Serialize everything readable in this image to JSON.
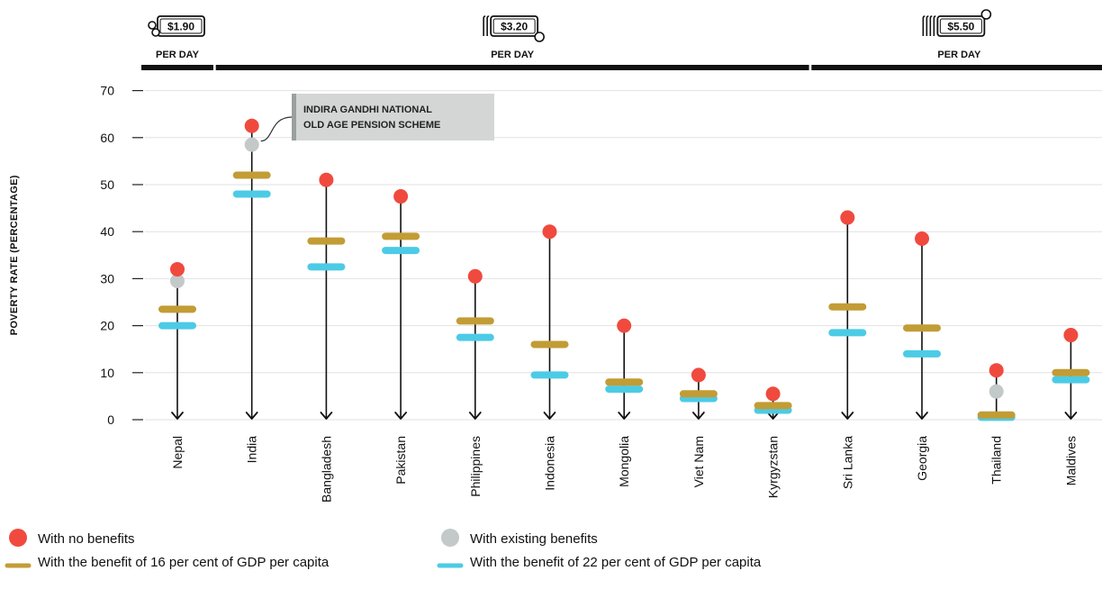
{
  "chart_data": {
    "type": "dot-range",
    "ylabel": "POVERTY RATE (PERCENTAGE)",
    "ylim": [
      0,
      70
    ],
    "yticks": [
      0,
      10,
      20,
      30,
      40,
      50,
      60,
      70
    ],
    "categories": [
      "Nepal",
      "India",
      "Bangladesh",
      "Pakistan",
      "Philippines",
      "Indonesia",
      "Mongolia",
      "Viet Nam",
      "Kyrgyzstan",
      "Sri Lanka",
      "Georgia",
      "Thailand",
      "Maldives"
    ],
    "series": [
      {
        "key": "no_benefits",
        "name": "With no benefits",
        "marker": "dot",
        "color": "#f04a3e",
        "values": [
          32,
          62.5,
          51,
          47.5,
          30.5,
          40,
          20,
          9.5,
          5.5,
          43,
          38.5,
          10.5,
          18
        ]
      },
      {
        "key": "existing_benefits",
        "name": "With existing benefits",
        "marker": "dot",
        "color": "#c3c8c8",
        "values": [
          29.5,
          58.5,
          null,
          null,
          null,
          null,
          null,
          null,
          null,
          null,
          null,
          6,
          null
        ]
      },
      {
        "key": "benefit_16",
        "name": "With the benefit of 16 per cent of GDP per capita",
        "marker": "bar",
        "color": "#c29c35",
        "values": [
          23.5,
          52,
          38,
          39,
          21,
          16,
          8,
          5.5,
          3,
          24,
          19.5,
          1,
          10
        ]
      },
      {
        "key": "benefit_22",
        "name": "With the benefit of 22 per cent of GDP per capita",
        "marker": "bar",
        "color": "#4ccbe6",
        "values": [
          20,
          48,
          32.5,
          36,
          17.5,
          9.5,
          6.5,
          4.5,
          2,
          18.5,
          14,
          0.5,
          8.5
        ]
      }
    ],
    "bands": [
      {
        "price": "$1.90",
        "label": "PER DAY",
        "from": 0,
        "to": 0,
        "icon": "coin-1-icon"
      },
      {
        "price": "$3.20",
        "label": "PER DAY",
        "from": 1,
        "to": 8,
        "icon": "coin-2-icon"
      },
      {
        "price": "$5.50",
        "label": "PER DAY",
        "from": 9,
        "to": 12,
        "icon": "coin-3-icon"
      }
    ],
    "annotation": {
      "category": "India",
      "lines": [
        "INDIRA GANDHI NATIONAL",
        "OLD AGE PENSION SCHEME"
      ]
    },
    "grid": true,
    "legend_position": "bottom-left"
  }
}
